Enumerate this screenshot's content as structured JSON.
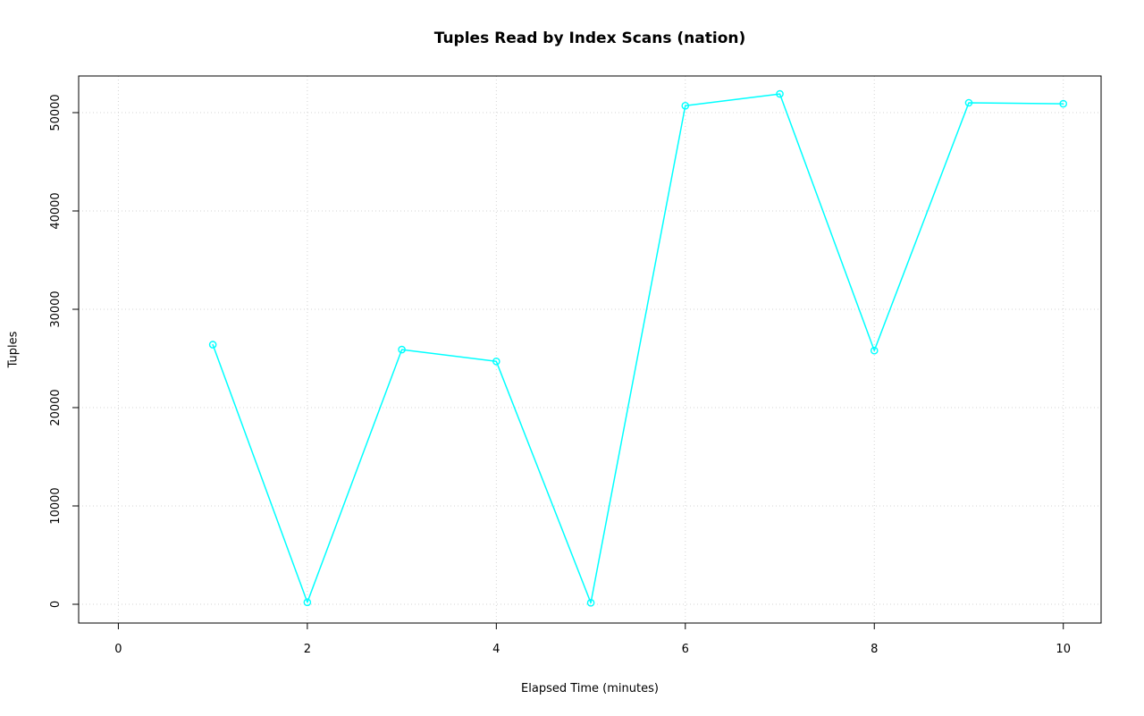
{
  "chart_data": {
    "type": "line",
    "title": "Tuples Read by Index Scans (nation)",
    "xlabel": "Elapsed Time (minutes)",
    "ylabel": "Tuples",
    "x": [
      1,
      2,
      3,
      4,
      5,
      6,
      7,
      8,
      9,
      10
    ],
    "values": [
      26400,
      200,
      25900,
      24700,
      150,
      50700,
      51900,
      25800,
      51000,
      50900
    ],
    "xlim": [
      0,
      10
    ],
    "ylim": [
      0,
      52000
    ],
    "xticks": [
      0,
      2,
      4,
      6,
      8,
      10
    ],
    "yticks": [
      0,
      10000,
      20000,
      30000,
      40000,
      50000
    ],
    "grid": true,
    "legend": "none",
    "marker": "open-circle",
    "line_color": "#00FFFF",
    "grid_color": "#D3D3D3",
    "box_color": "#000000",
    "text_color": "#000000"
  }
}
